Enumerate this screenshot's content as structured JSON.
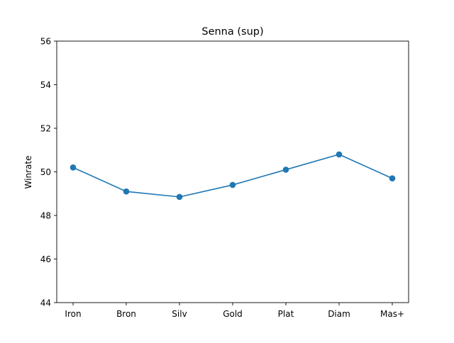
{
  "chart_data": {
    "type": "line",
    "title": "Senna (sup)",
    "xlabel": "",
    "ylabel": "Winrate",
    "categories": [
      "Iron",
      "Bron",
      "Silv",
      "Gold",
      "Plat",
      "Diam",
      "Mas+"
    ],
    "series": [
      {
        "values": [
          50.2,
          49.1,
          48.85,
          49.4,
          50.1,
          50.8,
          49.7
        ],
        "color": "#1f77b4",
        "marker": "circle"
      }
    ],
    "ylim": [
      44,
      56
    ],
    "yticks": [
      44,
      46,
      48,
      50,
      52,
      54,
      56
    ],
    "grid": false,
    "legend": "none"
  }
}
